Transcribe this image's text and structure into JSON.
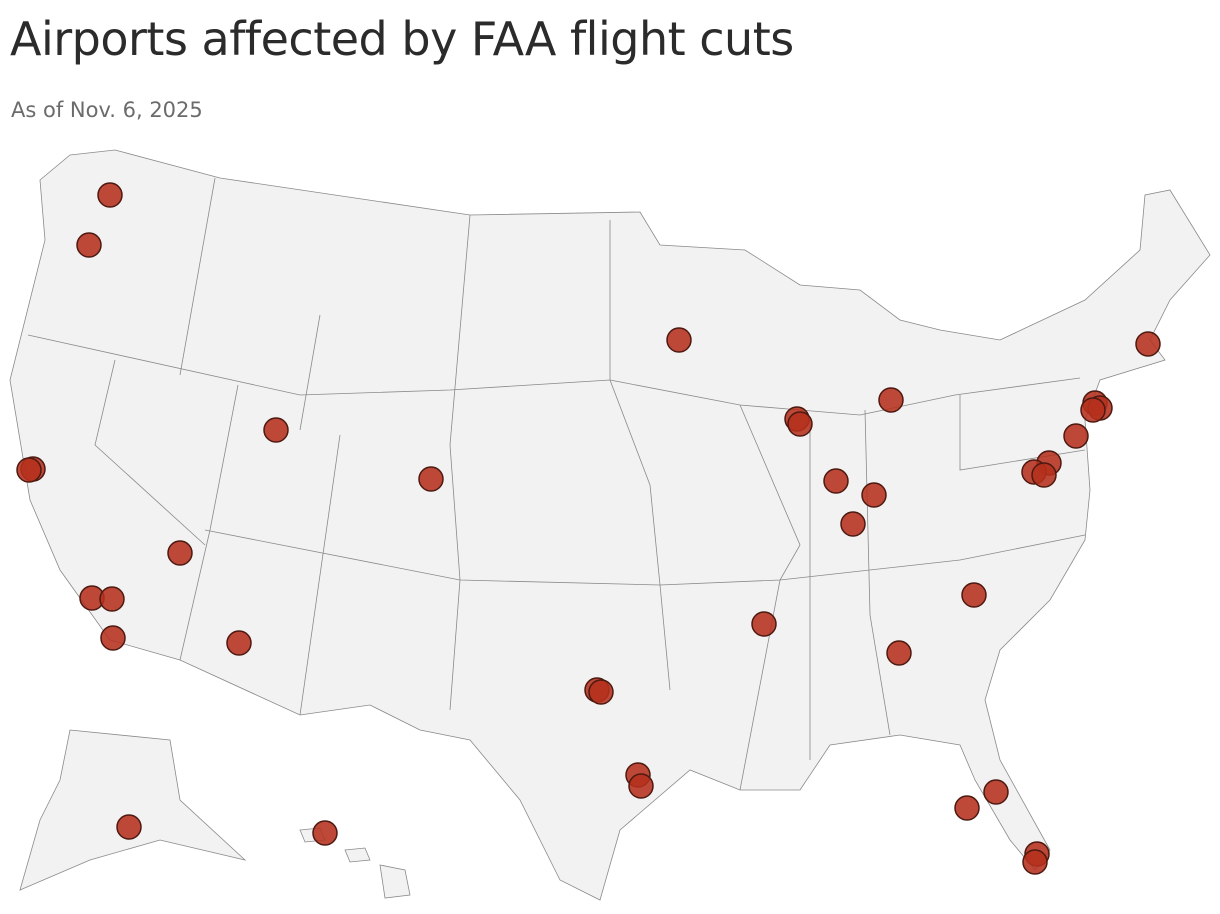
{
  "header": {
    "title": "Airports affected by FAA flight cuts",
    "subtitle": "As of Nov. 6, 2025"
  }
}
